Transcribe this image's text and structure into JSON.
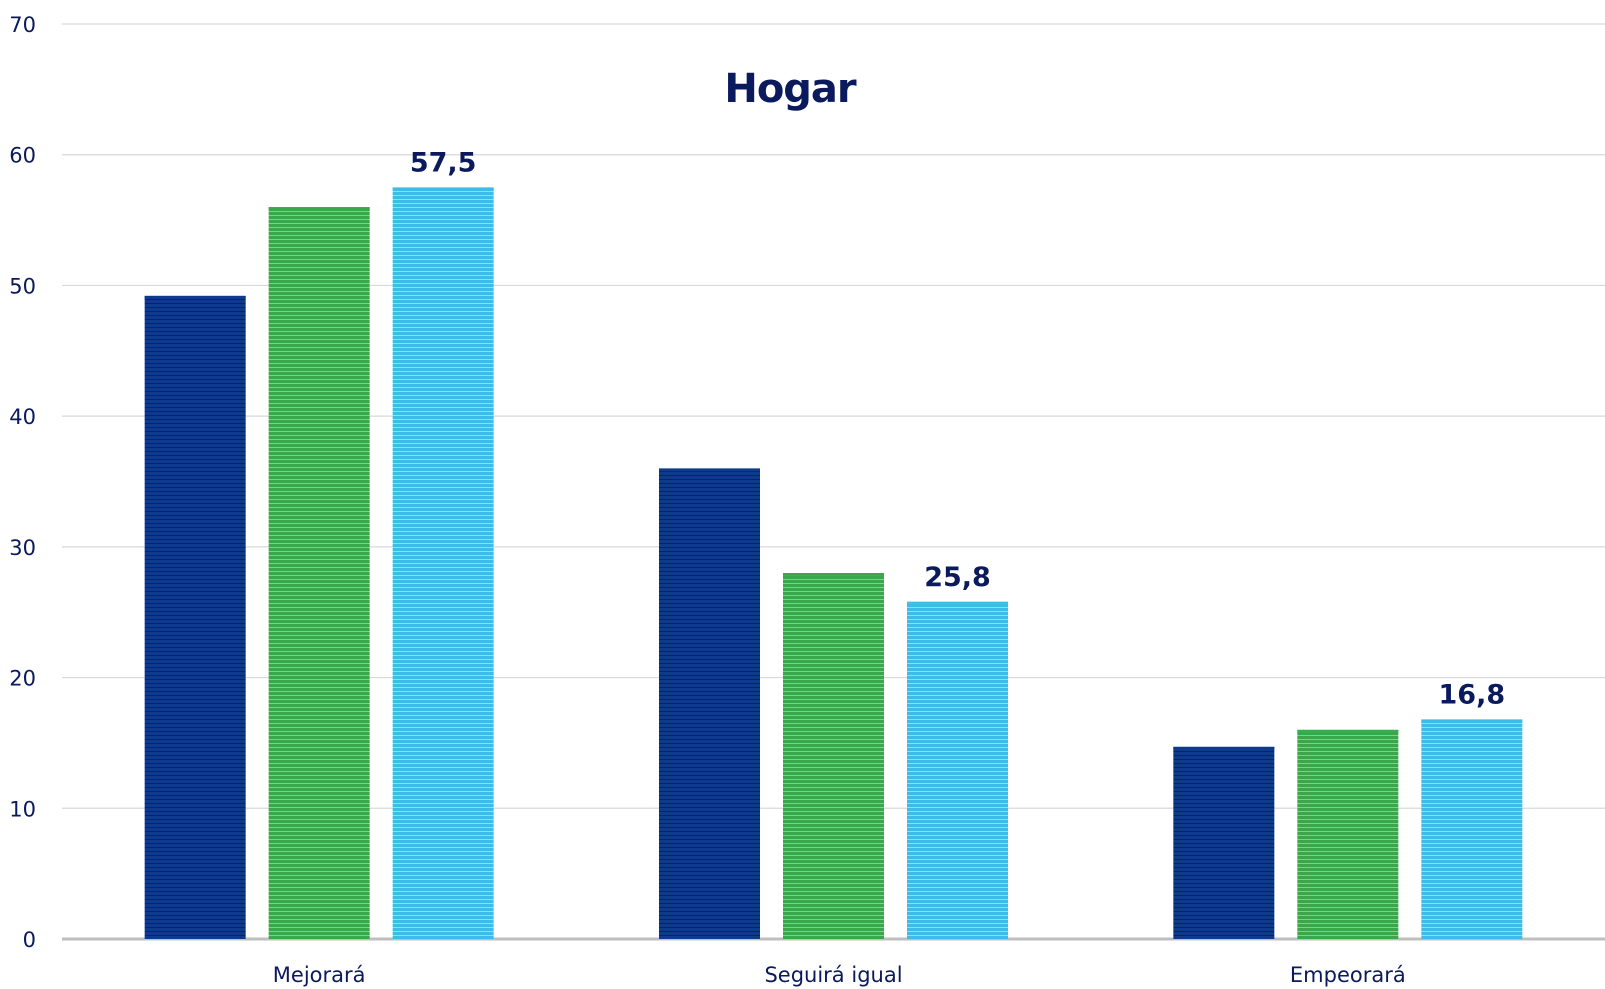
{
  "chart_data": {
    "type": "bar",
    "title": "Hogar",
    "categories": [
      "Mejorará",
      "Seguirá igual",
      "Empeorará"
    ],
    "series": [
      {
        "values": [
          49.2,
          36.0,
          14.7
        ],
        "color": "#0d3b8c"
      },
      {
        "values": [
          56.0,
          28.0,
          16.0
        ],
        "color": "#3aa84a"
      },
      {
        "values": [
          57.5,
          25.8,
          16.8
        ],
        "color": "#3cbde8"
      }
    ],
    "data_labels": [
      {
        "series": 2,
        "category": 0,
        "text": "57,5"
      },
      {
        "series": 2,
        "category": 1,
        "text": "25,8"
      },
      {
        "series": 2,
        "category": 2,
        "text": "16,8"
      }
    ],
    "ylim": [
      0,
      70
    ],
    "yticks": [
      0,
      10,
      20,
      30,
      40,
      50,
      60,
      70
    ],
    "grid": true,
    "legend": "none",
    "xlabel": "",
    "ylabel": ""
  }
}
